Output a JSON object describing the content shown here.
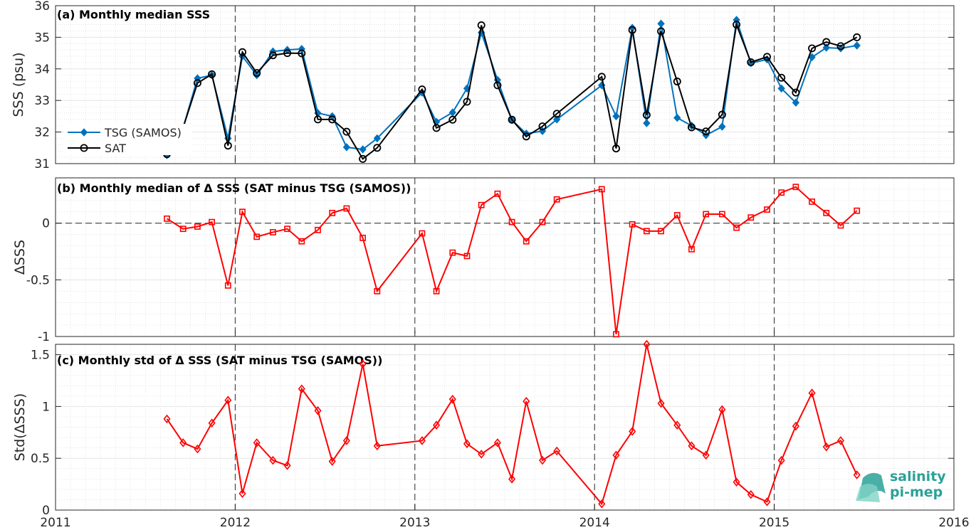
{
  "colors": {
    "tsg": "#0072bd",
    "sat": "#000000",
    "delta": "#ff0000",
    "grid": "#d9d9d9",
    "logo": "#2aa198"
  },
  "logo": {
    "line1": "salinity",
    "line2": "pi-mep"
  },
  "x_ticks": [
    "2011",
    "2012",
    "2013",
    "2014",
    "2015",
    "2016"
  ],
  "chart_data": [
    {
      "type": "line",
      "title": "(a) Monthly median SSS",
      "xlabel": "",
      "ylabel": "SSS (psu)",
      "xlim": [
        2011.0,
        2016.0
      ],
      "ylim": [
        31,
        36
      ],
      "yticks": [
        31,
        32,
        33,
        34,
        35,
        36
      ],
      "grid": true,
      "legend_position": "left",
      "x": [
        2011.62,
        2011.71,
        2011.79,
        2011.87,
        2011.96,
        2012.04,
        2012.12,
        2012.21,
        2012.29,
        2012.37,
        2012.46,
        2012.54,
        2012.62,
        2012.71,
        2012.79,
        2013.04,
        2013.12,
        2013.21,
        2013.29,
        2013.37,
        2013.46,
        2013.54,
        2013.62,
        2013.71,
        2013.79,
        2014.04,
        2014.12,
        2014.21,
        2014.29,
        2014.37,
        2014.46,
        2014.54,
        2014.62,
        2014.71,
        2014.79,
        2014.87,
        2014.96,
        2015.04,
        2015.12,
        2015.21,
        2015.29,
        2015.37,
        2015.46
      ],
      "series": [
        {
          "name": "TSG (SAMOS)",
          "marker": "diamond",
          "values": [
            31.27,
            32.13,
            33.7,
            33.8,
            31.8,
            34.4,
            33.8,
            34.55,
            34.6,
            34.63,
            32.6,
            32.5,
            31.52,
            31.45,
            31.8,
            33.25,
            32.32,
            32.62,
            33.38,
            35.15,
            33.65,
            32.38,
            31.95,
            32.03,
            32.4,
            33.48,
            32.5,
            35.3,
            32.28,
            35.43,
            32.45,
            32.2,
            31.9,
            32.17,
            35.55,
            34.18,
            34.3,
            33.38,
            32.93,
            34.37,
            34.67,
            34.65,
            34.74
          ]
        },
        {
          "name": "SAT",
          "marker": "circle",
          "values": [
            31.3,
            32.14,
            33.55,
            33.83,
            31.57,
            34.53,
            33.87,
            34.43,
            34.5,
            34.49,
            32.4,
            32.4,
            32.01,
            31.15,
            31.5,
            33.35,
            32.13,
            32.39,
            32.96,
            35.38,
            33.48,
            32.39,
            31.86,
            32.18,
            32.58,
            33.75,
            31.48,
            35.23,
            32.54,
            35.19,
            33.6,
            32.15,
            32.02,
            32.55,
            35.4,
            34.21,
            34.38,
            33.72,
            33.25,
            34.65,
            34.85,
            34.72,
            35.0
          ]
        }
      ]
    },
    {
      "type": "line",
      "title": "(b) Monthly median of Δ SSS (SAT minus TSG (SAMOS))",
      "xlabel": "",
      "ylabel": "ΔSSS",
      "xlim": [
        2011.0,
        2016.0
      ],
      "ylim": [
        -1.0,
        0.4
      ],
      "yticks": [
        -1,
        -0.5,
        0
      ],
      "zero_line": true,
      "grid": true,
      "x": [
        2011.62,
        2011.71,
        2011.79,
        2011.87,
        2011.96,
        2012.04,
        2012.12,
        2012.21,
        2012.29,
        2012.37,
        2012.46,
        2012.54,
        2012.62,
        2012.71,
        2012.79,
        2013.04,
        2013.12,
        2013.21,
        2013.29,
        2013.37,
        2013.46,
        2013.54,
        2013.62,
        2013.71,
        2013.79,
        2014.04,
        2014.12,
        2014.21,
        2014.29,
        2014.37,
        2014.46,
        2014.54,
        2014.62,
        2014.71,
        2014.79,
        2014.87,
        2014.96,
        2015.04,
        2015.12,
        2015.21,
        2015.29,
        2015.37,
        2015.46
      ],
      "series": [
        {
          "name": "",
          "marker": "square",
          "values": [
            0.04,
            -0.05,
            -0.03,
            0.01,
            -0.55,
            0.1,
            -0.12,
            -0.08,
            -0.05,
            -0.16,
            -0.06,
            0.09,
            0.13,
            -0.13,
            -0.6,
            -0.09,
            -0.6,
            -0.26,
            -0.29,
            0.16,
            0.26,
            0.01,
            -0.16,
            0.01,
            0.21,
            0.3,
            -0.98,
            -0.01,
            -0.07,
            -0.07,
            0.07,
            -0.23,
            0.08,
            0.08,
            -0.04,
            0.05,
            0.12,
            0.27,
            0.32,
            0.19,
            0.09,
            -0.02,
            0.11
          ]
        }
      ]
    },
    {
      "type": "line",
      "title": "(c) Monthly std of Δ SSS (SAT minus TSG (SAMOS))",
      "xlabel": "",
      "ylabel": "Std(ΔSSS)",
      "xlim": [
        2011.0,
        2016.0
      ],
      "ylim": [
        0,
        1.6
      ],
      "yticks": [
        0,
        0.5,
        1,
        1.5
      ],
      "grid": true,
      "x": [
        2011.62,
        2011.71,
        2011.79,
        2011.87,
        2011.96,
        2012.04,
        2012.12,
        2012.21,
        2012.29,
        2012.37,
        2012.46,
        2012.54,
        2012.62,
        2012.71,
        2012.79,
        2013.04,
        2013.12,
        2013.21,
        2013.29,
        2013.37,
        2013.46,
        2013.54,
        2013.62,
        2013.71,
        2013.79,
        2014.04,
        2014.12,
        2014.21,
        2014.29,
        2014.37,
        2014.46,
        2014.54,
        2014.62,
        2014.71,
        2014.79,
        2014.87,
        2014.96,
        2015.04,
        2015.12,
        2015.21,
        2015.29,
        2015.37,
        2015.46
      ],
      "series": [
        {
          "name": "",
          "marker": "diamond-open",
          "values": [
            0.88,
            0.65,
            0.59,
            0.84,
            1.06,
            0.16,
            0.65,
            0.48,
            0.43,
            1.17,
            0.96,
            0.47,
            0.67,
            1.41,
            0.62,
            0.67,
            0.82,
            1.07,
            0.64,
            0.54,
            0.65,
            0.3,
            1.05,
            0.48,
            0.57,
            0.06,
            0.53,
            0.76,
            1.6,
            1.03,
            0.82,
            0.62,
            0.53,
            0.97,
            0.27,
            0.15,
            0.08,
            0.48,
            0.81,
            1.13,
            0.61,
            0.67,
            0.34
          ]
        }
      ]
    }
  ]
}
